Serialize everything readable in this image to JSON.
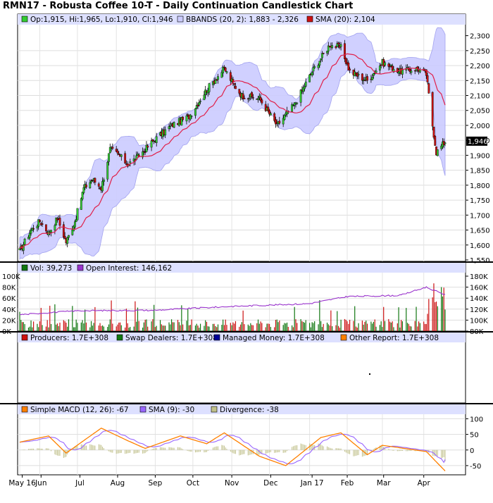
{
  "title": "RMN17 - Robusta Coffee 10-T - Daily Continuation Candlestick Chart",
  "colors": {
    "up": "#33cc33",
    "down": "#cc1111",
    "band_fill": "#ccccff",
    "band_edge": "#9999ee",
    "sma": "#e0204a",
    "vol_up": "#117711",
    "vol_down": "#cc1111",
    "oi": "#9933cc",
    "macd": "#ff8000",
    "macd_sig": "#9966ff",
    "divergence": "#c0c08a",
    "legend_bg": "#dde0ff",
    "producers": "#cc1111",
    "swap": "#117711",
    "managed": "#000099",
    "other": "#ff8000"
  },
  "price_panel": {
    "legend": [
      {
        "icon": "green-square-icon",
        "color": "#33cc33",
        "text": "Op:1,915, Hi:1,965, Lo:1,910, Cl:1,946"
      },
      {
        "icon": "lavender-square-icon",
        "color": "#ccccff",
        "text": "BBANDS (20, 2): 1,883 - 2,326"
      },
      {
        "icon": "red-square-icon",
        "color": "#cc1111",
        "text": "SMA (20): 2,104"
      }
    ],
    "y_ticks": [
      "2,300",
      "2,250",
      "2,200",
      "2,150",
      "2,100",
      "2,050",
      "2,000",
      "1,950",
      "1,900",
      "1,850",
      "1,800",
      "1,750",
      "1,700",
      "1,650",
      "1,600",
      "1,550"
    ],
    "last_price": "1,946"
  },
  "volume_panel": {
    "legend": [
      {
        "icon": "dark-green-square-icon",
        "color": "#117711",
        "text": "Vol: 39,273"
      },
      {
        "icon": "purple-square-icon",
        "color": "#9933cc",
        "text": "Open Interest: 146,162"
      }
    ],
    "left_ticks": [
      "100K",
      "80K",
      "60K",
      "40K",
      "20K",
      "0K"
    ],
    "right_ticks": [
      "180K",
      "160K",
      "140K",
      "120K",
      "100K",
      "80K"
    ]
  },
  "cot_panel": {
    "legend": [
      {
        "icon": "red-square-icon",
        "color": "#cc1111",
        "text": "Producers: 1.7E+308"
      },
      {
        "icon": "green-square-icon",
        "color": "#117711",
        "text": "Swap Dealers: 1.7E+308"
      },
      {
        "icon": "navy-square-icon",
        "color": "#000099",
        "text": "Managed Money: 1.7E+308"
      },
      {
        "icon": "orange-square-icon",
        "color": "#ff8000",
        "text": "Other Report: 1.7E+308"
      }
    ]
  },
  "macd_panel": {
    "legend": [
      {
        "icon": "orange-square-icon",
        "color": "#ff8000",
        "text": "Simple MACD (12, 26): -67"
      },
      {
        "icon": "violet-square-icon",
        "color": "#9966ff",
        "text": "SMA (9): -30"
      },
      {
        "icon": "khaki-square-icon",
        "color": "#c0c08a",
        "text": "Divergence: -38"
      }
    ],
    "y_ticks": [
      "100",
      "50",
      "0",
      "-50"
    ]
  },
  "x_labels": [
    "May 16",
    "Jun",
    "Jul",
    "Aug",
    "Sep",
    "Oct",
    "Nov",
    "Dec",
    "Jan 17",
    "Feb",
    "Mar",
    "Apr"
  ],
  "chart_data": {
    "type": "candlestick",
    "title": "RMN17 - Robusta Coffee 10-T - Daily Continuation Candlestick Chart",
    "price_ylim": [
      1550,
      2325
    ],
    "close_path": [
      {
        "date": "2016-05-16",
        "close": 1580
      },
      {
        "date": "2016-05-25",
        "close": 1650
      },
      {
        "date": "2016-06-01",
        "close": 1680
      },
      {
        "date": "2016-06-08",
        "close": 1640
      },
      {
        "date": "2016-06-15",
        "close": 1690
      },
      {
        "date": "2016-06-22",
        "close": 1610
      },
      {
        "date": "2016-06-29",
        "close": 1680
      },
      {
        "date": "2016-07-06",
        "close": 1790
      },
      {
        "date": "2016-07-13",
        "close": 1820
      },
      {
        "date": "2016-07-20",
        "close": 1790
      },
      {
        "date": "2016-07-27",
        "close": 1920
      },
      {
        "date": "2016-08-03",
        "close": 1900
      },
      {
        "date": "2016-08-10",
        "close": 1870
      },
      {
        "date": "2016-08-17",
        "close": 1890
      },
      {
        "date": "2016-08-31",
        "close": 1950
      },
      {
        "date": "2016-09-14",
        "close": 2000
      },
      {
        "date": "2016-09-28",
        "close": 2030
      },
      {
        "date": "2016-10-12",
        "close": 2120
      },
      {
        "date": "2016-10-26",
        "close": 2190
      },
      {
        "date": "2016-11-02",
        "close": 2140
      },
      {
        "date": "2016-11-09",
        "close": 2100
      },
      {
        "date": "2016-11-23",
        "close": 2090
      },
      {
        "date": "2016-12-07",
        "close": 2000
      },
      {
        "date": "2016-12-21",
        "close": 2070
      },
      {
        "date": "2017-01-04",
        "close": 2180
      },
      {
        "date": "2017-01-18",
        "close": 2270
      },
      {
        "date": "2017-01-27",
        "close": 2260
      },
      {
        "date": "2017-02-03",
        "close": 2180
      },
      {
        "date": "2017-02-17",
        "close": 2150
      },
      {
        "date": "2017-03-01",
        "close": 2210
      },
      {
        "date": "2017-03-15",
        "close": 2180
      },
      {
        "date": "2017-03-29",
        "close": 2190
      },
      {
        "date": "2017-04-05",
        "close": 2170
      },
      {
        "date": "2017-04-10",
        "close": 2000
      },
      {
        "date": "2017-04-13",
        "close": 1910
      },
      {
        "date": "2017-04-20",
        "close": 1946
      }
    ],
    "bollinger_20_2": {
      "lower": 1883,
      "upper": 2326
    },
    "sma_20": 2104,
    "last_bar": {
      "open": 1915,
      "high": 1965,
      "low": 1910,
      "close": 1946
    },
    "volume_last": 39273,
    "open_interest_last": 146162,
    "volume_ylim": [
      0,
      100000
    ],
    "oi_ylim": [
      80000,
      180000
    ],
    "oi_path": [
      {
        "date": "2016-05-16",
        "value": 110000
      },
      {
        "date": "2016-07-01",
        "value": 117000
      },
      {
        "date": "2016-09-01",
        "value": 118000
      },
      {
        "date": "2016-11-01",
        "value": 125000
      },
      {
        "date": "2017-01-02",
        "value": 130000
      },
      {
        "date": "2017-02-01",
        "value": 143000
      },
      {
        "date": "2017-03-15",
        "value": 145000
      },
      {
        "date": "2017-04-05",
        "value": 160000
      },
      {
        "date": "2017-04-20",
        "value": 146162
      }
    ],
    "macd_ylim": [
      -75,
      110
    ],
    "macd_last": -67,
    "macd_signal_last": -30,
    "macd_divergence_last": -38,
    "macd_path": [
      {
        "date": "2016-05-16",
        "value": 25
      },
      {
        "date": "2016-06-08",
        "value": 45
      },
      {
        "date": "2016-06-22",
        "value": -10
      },
      {
        "date": "2016-07-20",
        "value": 70
      },
      {
        "date": "2016-08-10",
        "value": 30
      },
      {
        "date": "2016-08-24",
        "value": 5
      },
      {
        "date": "2016-09-21",
        "value": 45
      },
      {
        "date": "2016-10-12",
        "value": 20
      },
      {
        "date": "2016-10-26",
        "value": 55
      },
      {
        "date": "2016-11-23",
        "value": -20
      },
      {
        "date": "2016-12-14",
        "value": -50
      },
      {
        "date": "2017-01-11",
        "value": 40
      },
      {
        "date": "2017-01-27",
        "value": 55
      },
      {
        "date": "2017-02-17",
        "value": -15
      },
      {
        "date": "2017-03-01",
        "value": 15
      },
      {
        "date": "2017-04-05",
        "value": -5
      },
      {
        "date": "2017-04-20",
        "value": -67
      }
    ]
  }
}
